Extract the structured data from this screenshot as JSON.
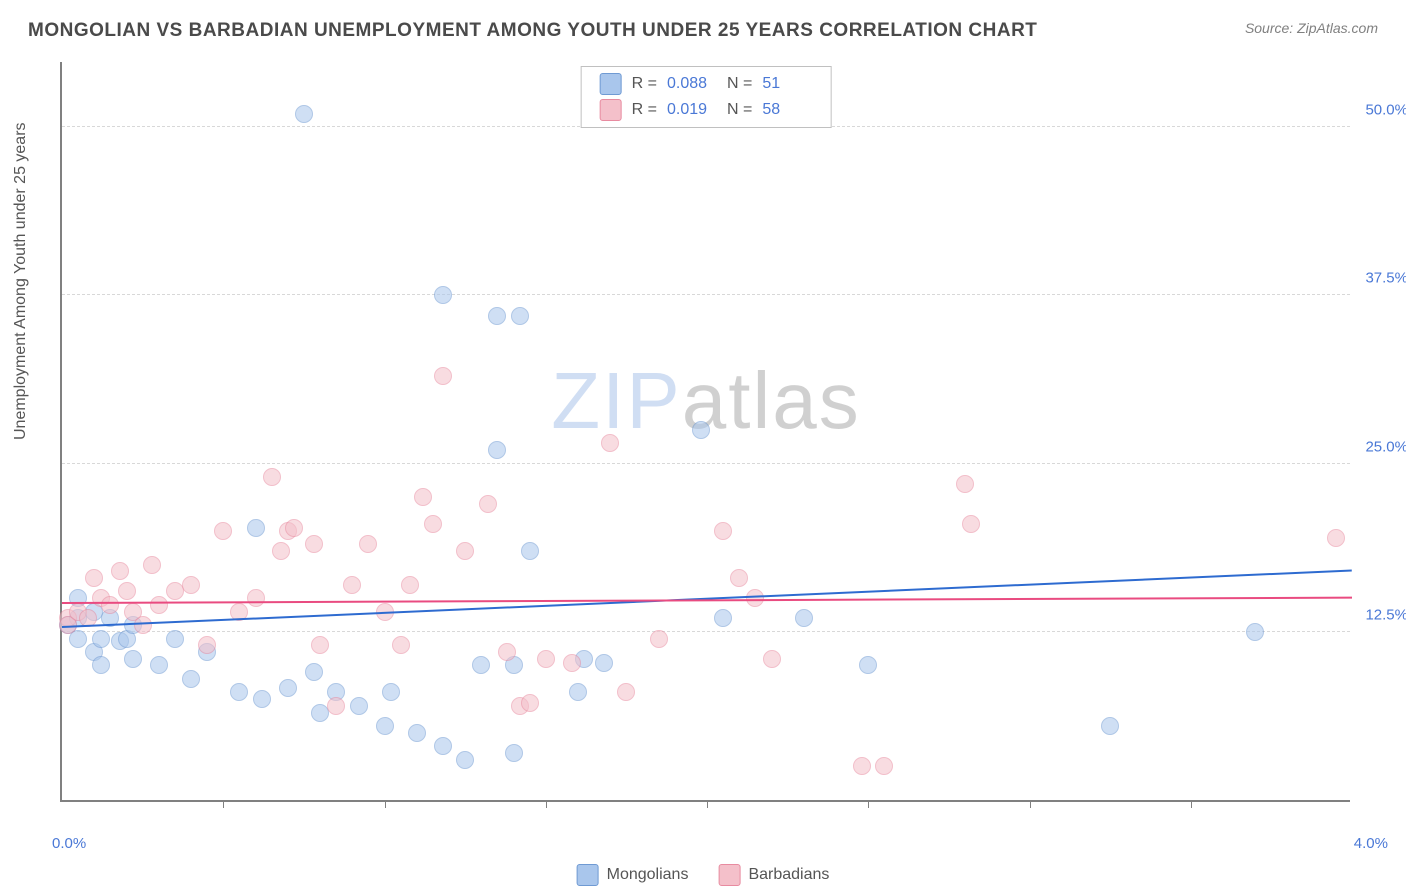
{
  "header": {
    "title": "MONGOLIAN VS BARBADIAN UNEMPLOYMENT AMONG YOUTH UNDER 25 YEARS CORRELATION CHART",
    "source_prefix": "Source: ",
    "source_name": "ZipAtlas.com"
  },
  "chart": {
    "type": "scatter",
    "ylabel": "Unemployment Among Youth under 25 years",
    "xlim": [
      0.0,
      4.0
    ],
    "ylim": [
      0.0,
      55.0
    ],
    "xlim_labels": [
      "0.0%",
      "4.0%"
    ],
    "ytick_values": [
      12.5,
      25.0,
      37.5,
      50.0
    ],
    "ytick_labels": [
      "12.5%",
      "25.0%",
      "37.5%",
      "50.0%"
    ],
    "xtick_positions": [
      0.5,
      1.0,
      1.5,
      2.0,
      2.5,
      3.0,
      3.5
    ],
    "background_color": "#ffffff",
    "grid_color": "#d8d8d8",
    "axis_color": "#808080",
    "tick_label_color": "#4a78d6",
    "marker_radius": 9,
    "marker_opacity": 0.55,
    "watermark": {
      "zip": "ZIP",
      "atlas": "atlas"
    }
  },
  "series": [
    {
      "name": "Mongolians",
      "fill_color": "#a9c6ec",
      "stroke_color": "#6f9ad3",
      "trend_color": "#2e6bd0",
      "R": "0.088",
      "N": "51",
      "trend": {
        "x1": 0.0,
        "y1": 12.8,
        "x2": 4.0,
        "y2": 17.0
      },
      "points": [
        [
          0.02,
          13.0
        ],
        [
          0.05,
          15.0
        ],
        [
          0.05,
          13.5
        ],
        [
          0.05,
          12.0
        ],
        [
          0.1,
          11.0
        ],
        [
          0.1,
          14.0
        ],
        [
          0.12,
          10.0
        ],
        [
          0.12,
          12.0
        ],
        [
          0.15,
          13.5
        ],
        [
          0.18,
          11.8
        ],
        [
          0.2,
          12.0
        ],
        [
          0.22,
          10.5
        ],
        [
          0.22,
          13.0
        ],
        [
          0.3,
          10.0
        ],
        [
          0.35,
          12.0
        ],
        [
          0.4,
          9.0
        ],
        [
          0.45,
          11.0
        ],
        [
          0.55,
          8.0
        ],
        [
          0.6,
          20.2
        ],
        [
          0.62,
          7.5
        ],
        [
          0.7,
          8.3
        ],
        [
          0.75,
          51.0
        ],
        [
          0.78,
          9.5
        ],
        [
          0.8,
          6.5
        ],
        [
          0.85,
          8.0
        ],
        [
          0.92,
          7.0
        ],
        [
          1.0,
          5.5
        ],
        [
          1.02,
          8.0
        ],
        [
          1.1,
          5.0
        ],
        [
          1.18,
          37.5
        ],
        [
          1.18,
          4.0
        ],
        [
          1.25,
          3.0
        ],
        [
          1.3,
          10.0
        ],
        [
          1.35,
          36.0
        ],
        [
          1.35,
          26.0
        ],
        [
          1.4,
          10.0
        ],
        [
          1.4,
          3.5
        ],
        [
          1.42,
          36.0
        ],
        [
          1.45,
          18.5
        ],
        [
          1.6,
          8.0
        ],
        [
          1.62,
          10.5
        ],
        [
          1.68,
          10.2
        ],
        [
          1.98,
          27.5
        ],
        [
          2.05,
          13.5
        ],
        [
          2.3,
          13.5
        ],
        [
          2.5,
          10.0
        ],
        [
          3.25,
          5.5
        ],
        [
          3.7,
          12.5
        ]
      ]
    },
    {
      "name": "Barbadians",
      "fill_color": "#f4c0ca",
      "stroke_color": "#e88ba0",
      "trend_color": "#e94b80",
      "R": "0.019",
      "N": "58",
      "trend": {
        "x1": 0.0,
        "y1": 14.6,
        "x2": 4.0,
        "y2": 15.0
      },
      "points": [
        [
          0.02,
          13.5
        ],
        [
          0.02,
          13.0
        ],
        [
          0.05,
          14.0
        ],
        [
          0.08,
          13.5
        ],
        [
          0.1,
          16.5
        ],
        [
          0.12,
          15.0
        ],
        [
          0.15,
          14.5
        ],
        [
          0.18,
          17.0
        ],
        [
          0.2,
          15.5
        ],
        [
          0.22,
          14.0
        ],
        [
          0.25,
          13.0
        ],
        [
          0.28,
          17.5
        ],
        [
          0.3,
          14.5
        ],
        [
          0.35,
          15.5
        ],
        [
          0.4,
          16.0
        ],
        [
          0.45,
          11.5
        ],
        [
          0.5,
          20.0
        ],
        [
          0.55,
          14.0
        ],
        [
          0.6,
          15.0
        ],
        [
          0.65,
          24.0
        ],
        [
          0.68,
          18.5
        ],
        [
          0.7,
          20.0
        ],
        [
          0.72,
          20.2
        ],
        [
          0.78,
          19.0
        ],
        [
          0.8,
          11.5
        ],
        [
          0.85,
          7.0
        ],
        [
          0.9,
          16.0
        ],
        [
          0.95,
          19.0
        ],
        [
          1.0,
          14.0
        ],
        [
          1.05,
          11.5
        ],
        [
          1.08,
          16.0
        ],
        [
          1.12,
          22.5
        ],
        [
          1.15,
          20.5
        ],
        [
          1.18,
          31.5
        ],
        [
          1.25,
          18.5
        ],
        [
          1.32,
          22.0
        ],
        [
          1.38,
          11.0
        ],
        [
          1.42,
          7.0
        ],
        [
          1.45,
          7.2
        ],
        [
          1.5,
          10.5
        ],
        [
          1.58,
          10.2
        ],
        [
          1.7,
          26.5
        ],
        [
          1.75,
          8.0
        ],
        [
          1.85,
          12.0
        ],
        [
          2.05,
          20.0
        ],
        [
          2.1,
          16.5
        ],
        [
          2.15,
          15.0
        ],
        [
          2.2,
          10.5
        ],
        [
          2.48,
          2.5
        ],
        [
          2.55,
          2.5
        ],
        [
          2.8,
          23.5
        ],
        [
          2.82,
          20.5
        ],
        [
          3.95,
          19.5
        ]
      ]
    }
  ],
  "legend": {
    "r_label": "R =",
    "n_label": "N ="
  }
}
